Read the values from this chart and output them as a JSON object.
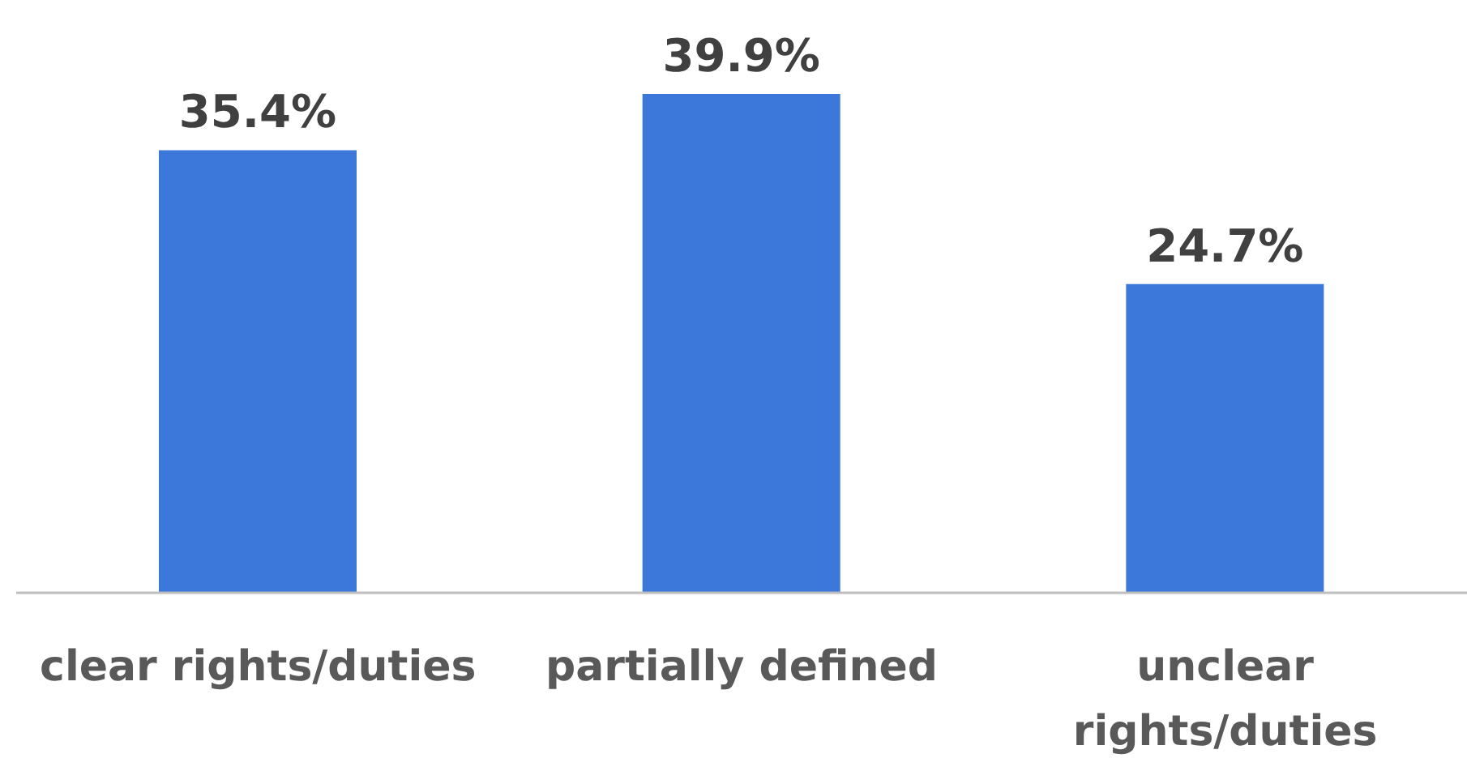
{
  "chart_data": {
    "type": "bar",
    "categories": [
      "clear rights/duties",
      "partially defined",
      "unclear rights/duties"
    ],
    "values": [
      35.4,
      39.9,
      24.7
    ],
    "value_labels": [
      "35.4%",
      "39.9%",
      "24.7%"
    ],
    "color": "#3b78d9"
  }
}
